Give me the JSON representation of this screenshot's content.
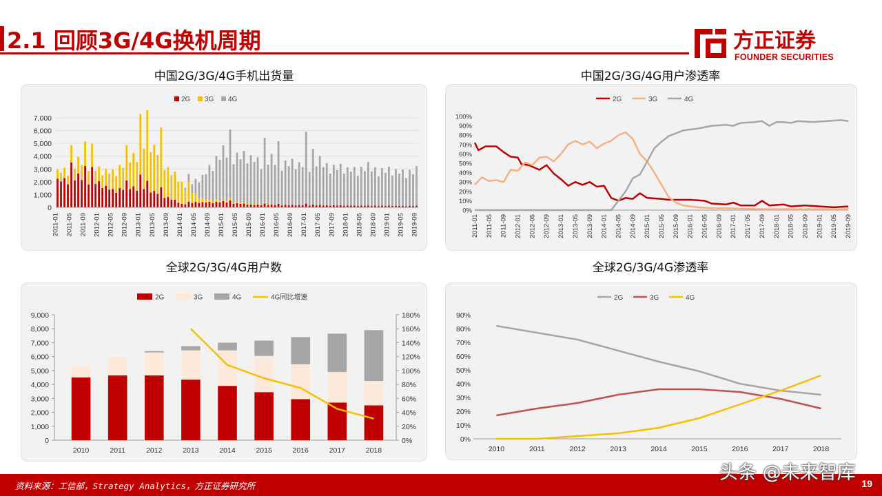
{
  "page": {
    "title": "2.1 回顾3G/4G换机周期",
    "logo_cn": "方正证券",
    "logo_en": "FOUNDER SECURITIES",
    "source": "资料来源：工信部，Strategy Analytics，方正证券研究所",
    "page_number": "19",
    "watermark": "头条 @未来智库",
    "colors": {
      "brand_red": "#c00000",
      "series_2g": "#c00000",
      "series_3g": "#f5c000",
      "series_4g": "#a6a6a6"
    }
  },
  "chart_data": [
    {
      "id": "cn-shipments",
      "type": "bar",
      "stacked": true,
      "title": "中国2G/3G/4G手机出货量",
      "x_labels": [
        "2011-01",
        "2011-05",
        "2011-09",
        "2012-01",
        "2012-05",
        "2012-09",
        "2013-01",
        "2013-05",
        "2013-09",
        "2014-01",
        "2014-05",
        "2014-09",
        "2015-01",
        "2015-05",
        "2015-09",
        "2016-01",
        "2016-05",
        "2016-09",
        "2017-01",
        "2017-05",
        "2017-09",
        "2018-01",
        "2018-05",
        "2018-09",
        "2019-01",
        "2019-05",
        "2019-09"
      ],
      "months": 105,
      "ylim": [
        0,
        7000
      ],
      "yticks": [
        "0",
        "1,000",
        "2,000",
        "3,000",
        "4,000",
        "5,000",
        "6,000",
        "7,000"
      ],
      "legend": [
        "2G",
        "3G",
        "4G"
      ],
      "legend_position": "top",
      "anchors": {
        "g2": [
          [
            0,
            2500
          ],
          [
            8,
            2700
          ],
          [
            16,
            1600
          ],
          [
            24,
            1900
          ],
          [
            30,
            1200
          ],
          [
            36,
            300
          ],
          [
            40,
            450
          ],
          [
            48,
            500
          ],
          [
            56,
            250
          ],
          [
            64,
            220
          ],
          [
            72,
            200
          ],
          [
            80,
            180
          ],
          [
            90,
            150
          ],
          [
            104,
            130
          ]
        ],
        "g3": [
          [
            0,
            800
          ],
          [
            4,
            1000
          ],
          [
            8,
            1600
          ],
          [
            12,
            1200
          ],
          [
            16,
            1700
          ],
          [
            20,
            2300
          ],
          [
            24,
            3500
          ],
          [
            26,
            4400
          ],
          [
            28,
            4000
          ],
          [
            30,
            3600
          ],
          [
            32,
            2600
          ],
          [
            34,
            2200
          ],
          [
            36,
            1900
          ],
          [
            38,
            1300
          ],
          [
            40,
            700
          ],
          [
            42,
            350
          ],
          [
            44,
            200
          ],
          [
            48,
            150
          ],
          [
            56,
            80
          ],
          [
            64,
            20
          ],
          [
            104,
            0
          ]
        ],
        "g4": [
          [
            0,
            0
          ],
          [
            36,
            0
          ],
          [
            38,
            500
          ],
          [
            40,
            1200
          ],
          [
            42,
            2000
          ],
          [
            44,
            3000
          ],
          [
            46,
            3800
          ],
          [
            48,
            4200
          ],
          [
            50,
            4300
          ],
          [
            56,
            4200
          ],
          [
            60,
            3900
          ],
          [
            64,
            3900
          ],
          [
            70,
            3700
          ],
          [
            76,
            3800
          ],
          [
            80,
            3500
          ],
          [
            84,
            3300
          ],
          [
            90,
            3400
          ],
          [
            96,
            3200
          ],
          [
            104,
            3100
          ]
        ]
      },
      "amplitude": [
        0.9,
        0.8,
        0.9,
        0.7,
        0.9,
        0.8,
        1.0,
        0.8,
        0.9,
        0.7,
        0.9,
        0.8,
        0.95,
        0.75
      ],
      "spikes": [
        [
          4,
          1.35
        ],
        [
          8,
          1.2
        ],
        [
          10,
          1.3
        ],
        [
          20,
          1.2
        ],
        [
          24,
          1.35
        ],
        [
          26,
          1.25
        ],
        [
          30,
          1.3
        ],
        [
          38,
          1.2
        ],
        [
          50,
          1.25
        ],
        [
          60,
          1.3
        ],
        [
          64,
          1.25
        ],
        [
          72,
          1.5
        ],
        [
          74,
          1.15
        ]
      ]
    },
    {
      "id": "cn-penetration",
      "type": "line",
      "title": "中国2G/3G/4G用户渗透率",
      "x_labels": [
        "2011-01",
        "2011-05",
        "2011-09",
        "2012-01",
        "2012-05",
        "2012-09",
        "2013-01",
        "2013-05",
        "2013-09",
        "2014-01",
        "2014-05",
        "2014-09",
        "2015-01",
        "2015-05",
        "2015-09",
        "2016-01",
        "2016-05",
        "2016-09",
        "2017-01",
        "2017-05",
        "2017-09",
        "2018-01",
        "2018-05",
        "2018-09",
        "2019-01",
        "2019-05",
        "2019-09"
      ],
      "months": 105,
      "ylim": [
        0,
        100
      ],
      "yticks": [
        "0%",
        "10%",
        "20%",
        "30%",
        "40%",
        "50%",
        "60%",
        "70%",
        "80%",
        "90%",
        "100%"
      ],
      "legend_position": "top",
      "series": [
        {
          "name": "2G",
          "color": "#c00000",
          "points": [
            [
              0,
              72
            ],
            [
              1,
              64
            ],
            [
              3,
              68
            ],
            [
              6,
              68
            ],
            [
              8,
              62
            ],
            [
              10,
              57
            ],
            [
              12,
              56
            ],
            [
              13,
              49
            ],
            [
              15,
              48
            ],
            [
              18,
              43
            ],
            [
              20,
              48
            ],
            [
              22,
              39
            ],
            [
              24,
              33
            ],
            [
              26,
              26
            ],
            [
              28,
              30
            ],
            [
              30,
              27
            ],
            [
              32,
              30
            ],
            [
              34,
              25
            ],
            [
              36,
              26
            ],
            [
              38,
              13
            ],
            [
              40,
              10
            ],
            [
              42,
              13
            ],
            [
              44,
              12
            ],
            [
              46,
              18
            ],
            [
              48,
              13
            ],
            [
              52,
              12
            ],
            [
              54,
              11
            ],
            [
              60,
              11
            ],
            [
              64,
              10
            ],
            [
              66,
              7
            ],
            [
              70,
              6
            ],
            [
              72,
              8
            ],
            [
              74,
              5
            ],
            [
              78,
              5
            ],
            [
              80,
              10
            ],
            [
              82,
              5
            ],
            [
              86,
              6
            ],
            [
              88,
              4
            ],
            [
              92,
              5
            ],
            [
              96,
              4
            ],
            [
              100,
              3
            ],
            [
              104,
              4
            ]
          ]
        },
        {
          "name": "3G",
          "color": "#f4b183",
          "points": [
            [
              0,
              27
            ],
            [
              2,
              35
            ],
            [
              4,
              31
            ],
            [
              6,
              32
            ],
            [
              8,
              30
            ],
            [
              10,
              43
            ],
            [
              12,
              42
            ],
            [
              14,
              51
            ],
            [
              16,
              48
            ],
            [
              18,
              56
            ],
            [
              20,
              57
            ],
            [
              22,
              52
            ],
            [
              24,
              60
            ],
            [
              26,
              70
            ],
            [
              28,
              74
            ],
            [
              30,
              70
            ],
            [
              32,
              73
            ],
            [
              34,
              66
            ],
            [
              36,
              71
            ],
            [
              38,
              74
            ],
            [
              40,
              80
            ],
            [
              42,
              83
            ],
            [
              44,
              76
            ],
            [
              46,
              60
            ],
            [
              48,
              52
            ],
            [
              50,
              40
            ],
            [
              52,
              27
            ],
            [
              54,
              14
            ],
            [
              56,
              8
            ],
            [
              58,
              5
            ],
            [
              60,
              4
            ],
            [
              62,
              3
            ],
            [
              66,
              2
            ],
            [
              70,
              2
            ],
            [
              80,
              1
            ],
            [
              104,
              1
            ]
          ]
        },
        {
          "name": "4G",
          "color": "#a6a6a6",
          "points": [
            [
              0,
              0
            ],
            [
              38,
              0
            ],
            [
              40,
              10
            ],
            [
              42,
              20
            ],
            [
              44,
              34
            ],
            [
              46,
              38
            ],
            [
              48,
              52
            ],
            [
              50,
              66
            ],
            [
              52,
              73
            ],
            [
              54,
              79
            ],
            [
              56,
              82
            ],
            [
              58,
              85
            ],
            [
              60,
              86
            ],
            [
              62,
              87
            ],
            [
              66,
              90
            ],
            [
              70,
              91
            ],
            [
              72,
              90
            ],
            [
              74,
              93
            ],
            [
              78,
              94
            ],
            [
              80,
              95
            ],
            [
              82,
              90
            ],
            [
              84,
              94
            ],
            [
              86,
              94
            ],
            [
              88,
              93
            ],
            [
              90,
              95
            ],
            [
              94,
              94
            ],
            [
              98,
              95
            ],
            [
              102,
              96
            ],
            [
              104,
              95
            ]
          ]
        }
      ]
    },
    {
      "id": "global-users",
      "type": "bar",
      "stacked": true,
      "title": "全球2G/3G/4G用户数",
      "categories": [
        "2010",
        "2011",
        "2012",
        "2013",
        "2014",
        "2015",
        "2016",
        "2017",
        "2018"
      ],
      "series": [
        {
          "name": "2G",
          "color": "#c00000",
          "values": [
            4500,
            4650,
            4650,
            4350,
            3900,
            3450,
            2950,
            2700,
            2500
          ]
        },
        {
          "name": "3G",
          "color": "#fde9d9",
          "values": [
            850,
            1350,
            1650,
            2100,
            2550,
            2600,
            2500,
            2200,
            1750
          ]
        },
        {
          "name": "4G",
          "color": "#a6a6a6",
          "values": [
            0,
            0,
            100,
            300,
            550,
            1100,
            1950,
            2750,
            3650
          ]
        }
      ],
      "line": {
        "name": "4G同比增速",
        "color": "#f5c000",
        "values": [
          null,
          null,
          null,
          160,
          108,
          89,
          75,
          45,
          31
        ]
      },
      "ylim": [
        0,
        9000
      ],
      "yticks": [
        "0",
        "1,000",
        "2,000",
        "3,000",
        "4,000",
        "5,000",
        "6,000",
        "7,000",
        "8,000",
        "9,000"
      ],
      "y2lim": [
        0,
        180
      ],
      "y2ticks": [
        "0%",
        "20%",
        "40%",
        "60%",
        "80%",
        "100%",
        "120%",
        "140%",
        "160%",
        "180%"
      ],
      "legend_position": "top"
    },
    {
      "id": "global-penetration",
      "type": "line",
      "title": "全球2G/3G/4G渗透率",
      "categories": [
        "2010",
        "2011",
        "2012",
        "2013",
        "2014",
        "2015",
        "2016",
        "2017",
        "2018"
      ],
      "series": [
        {
          "name": "2G",
          "color": "#a6a6a6",
          "values": [
            82,
            77,
            72,
            64,
            56,
            49,
            40,
            35,
            32
          ]
        },
        {
          "name": "3G",
          "color": "#c0504d",
          "values": [
            17,
            22,
            26,
            32,
            36,
            36,
            34,
            29,
            22
          ]
        },
        {
          "name": "4G",
          "color": "#f5c000",
          "values": [
            0,
            0,
            2,
            4,
            8,
            15,
            25,
            35,
            46
          ]
        }
      ],
      "ylim": [
        0,
        90
      ],
      "yticks": [
        "0%",
        "10%",
        "20%",
        "30%",
        "40%",
        "50%",
        "60%",
        "70%",
        "80%",
        "90%"
      ],
      "legend_position": "top"
    }
  ]
}
